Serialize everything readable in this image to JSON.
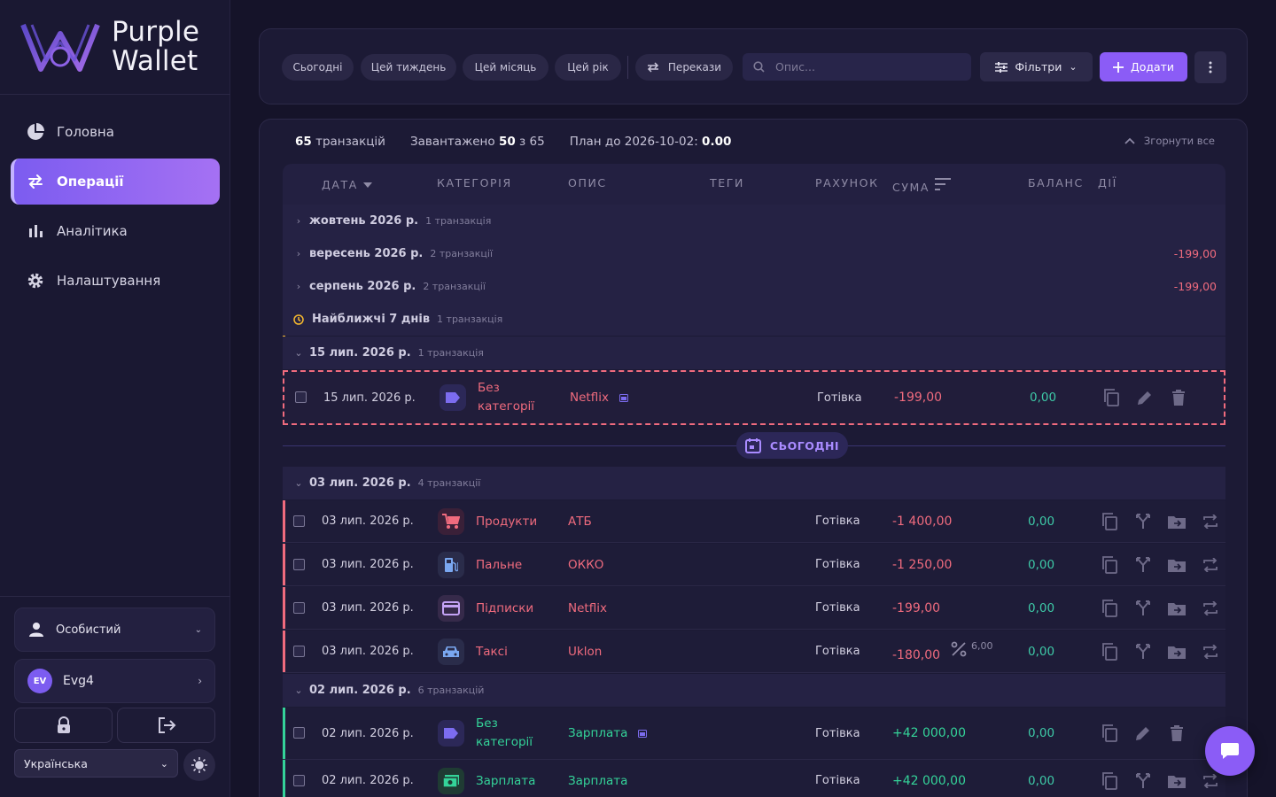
{
  "brand": {
    "line1": "Purple",
    "line2": "Wallet"
  },
  "nav": [
    {
      "label": "Головна",
      "icon": "pie-chart-icon"
    },
    {
      "label": "Операції",
      "icon": "transfer-arrows-icon",
      "active": true
    },
    {
      "label": "Аналітика",
      "icon": "bar-chart-icon"
    },
    {
      "label": "Налаштування",
      "icon": "gear-icon"
    }
  ],
  "profile": {
    "account_label": "Особистий",
    "user_initials": "EV",
    "user_name": "Evg4"
  },
  "language": {
    "selected": "Українська"
  },
  "toolbar": {
    "chips": [
      "Сьогодні",
      "Цей тиждень",
      "Цей місяць",
      "Цей рік"
    ],
    "transfers_label": "Перекази",
    "search_placeholder": "Опис...",
    "filters_label": "Фільтри",
    "add_label": "Додати"
  },
  "summary": {
    "count": "65",
    "count_suffix": "транзакцій",
    "loaded_prefix": "Завантажено",
    "loaded": "50",
    "loaded_of": "з 65",
    "plan_label": "План до 2026-10-02:",
    "plan_value": "0.00",
    "collapse_label": "Згорнути все"
  },
  "columns": [
    "ДАТА",
    "КАТЕГОРІЯ",
    "ОПИС",
    "ТЕГИ",
    "РАХУНОК",
    "СУМА",
    "БАЛАНС",
    "ДІЇ"
  ],
  "groups": {
    "oct": {
      "label": "жовтень 2026 р.",
      "count": "1 транзакція",
      "amount": ""
    },
    "sep": {
      "label": "вересень 2026 р.",
      "count": "2 транзакції",
      "amount": "-199,00"
    },
    "aug": {
      "label": "серпень 2026 р.",
      "count": "2 транзакції",
      "amount": "-199,00"
    },
    "next7": {
      "label": "Найближчі 7 днів",
      "count": "1 транзакція"
    },
    "jul15": {
      "label": "15 лип. 2026 р.",
      "count": "1 транзакція"
    },
    "jul03": {
      "label": "03 лип. 2026 р.",
      "count": "4 транзакції"
    },
    "jul02": {
      "label": "02 лип. 2026 р.",
      "count": "6 транзакцій"
    }
  },
  "today_label": "СЬОГОДНІ",
  "transactions": {
    "planned": {
      "date": "15 лип. 2026 р.",
      "category": "Без категорії",
      "desc": "Netflix",
      "account": "Готівка",
      "amount": "-199,00",
      "balance": "0,00"
    },
    "t1": {
      "date": "03 лип. 2026 р.",
      "category": "Продукти",
      "desc": "АТБ",
      "account": "Готівка",
      "amount": "-1 400,00",
      "balance": "0,00"
    },
    "t2": {
      "date": "03 лип. 2026 р.",
      "category": "Пальне",
      "desc": "ОККО",
      "account": "Готівка",
      "amount": "-1 250,00",
      "balance": "0,00"
    },
    "t3": {
      "date": "03 лип. 2026 р.",
      "category": "Підписки",
      "desc": "Netflix",
      "account": "Готівка",
      "amount": "-199,00",
      "balance": "0,00"
    },
    "t4": {
      "date": "03 лип. 2026 р.",
      "category": "Таксі",
      "desc": "Uklon",
      "account": "Готівка",
      "amount": "-180,00",
      "fee": "6,00",
      "balance": "0,00"
    },
    "t5": {
      "date": "02 лип. 2026 р.",
      "category": "Без категорії",
      "desc": "Зарплата",
      "account": "Готівка",
      "amount": "+42 000,00",
      "balance": "0,00"
    },
    "t6": {
      "date": "02 лип. 2026 р.",
      "category": "Зарплата",
      "desc": "Зарплата",
      "account": "Готівка",
      "amount": "+42 000,00",
      "balance": "0,00"
    }
  },
  "colors": {
    "accent": "#8b5cf6",
    "expense": "#f06b7e",
    "income": "#34d399",
    "planned_border": "#f06b7e",
    "group_highlight": "#f5b82e"
  }
}
